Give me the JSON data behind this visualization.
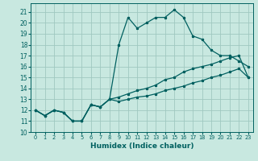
{
  "xlabel": "Humidex (Indice chaleur)",
  "bg_color": "#c8e8e0",
  "grid_color": "#a0c8c0",
  "line_color": "#006060",
  "xlim": [
    -0.5,
    23.5
  ],
  "ylim": [
    10.0,
    21.8
  ],
  "yticks": [
    10,
    11,
    12,
    13,
    14,
    15,
    16,
    17,
    18,
    19,
    20,
    21
  ],
  "xticks": [
    0,
    1,
    2,
    3,
    4,
    5,
    6,
    7,
    8,
    9,
    10,
    11,
    12,
    13,
    14,
    15,
    16,
    17,
    18,
    19,
    20,
    21,
    22,
    23
  ],
  "line1_x": [
    0,
    1,
    2,
    3,
    4,
    5,
    6,
    7,
    8,
    9,
    10,
    11,
    12,
    13,
    14,
    15,
    16,
    17,
    18,
    19,
    20,
    21,
    22,
    23
  ],
  "line1_y": [
    12.0,
    11.5,
    12.0,
    11.8,
    11.0,
    11.0,
    12.5,
    12.3,
    13.0,
    18.0,
    20.5,
    19.5,
    20.0,
    20.5,
    20.5,
    21.2,
    20.5,
    18.8,
    18.5,
    17.5,
    17.0,
    17.0,
    16.5,
    16.0
  ],
  "line2_x": [
    0,
    1,
    2,
    3,
    4,
    5,
    6,
    7,
    8,
    9,
    10,
    11,
    12,
    13,
    14,
    15,
    16,
    17,
    18,
    19,
    20,
    21,
    22,
    23
  ],
  "line2_y": [
    12.0,
    11.5,
    12.0,
    11.8,
    11.0,
    11.0,
    12.5,
    12.3,
    13.0,
    13.2,
    13.5,
    13.8,
    14.0,
    14.3,
    14.8,
    15.0,
    15.5,
    15.8,
    16.0,
    16.2,
    16.5,
    16.8,
    17.0,
    15.0
  ],
  "line3_x": [
    0,
    1,
    2,
    3,
    4,
    5,
    6,
    7,
    8,
    9,
    10,
    11,
    12,
    13,
    14,
    15,
    16,
    17,
    18,
    19,
    20,
    21,
    22,
    23
  ],
  "line3_y": [
    12.0,
    11.5,
    12.0,
    11.8,
    11.0,
    11.0,
    12.5,
    12.3,
    13.0,
    12.8,
    13.0,
    13.2,
    13.3,
    13.5,
    13.8,
    14.0,
    14.2,
    14.5,
    14.7,
    15.0,
    15.2,
    15.5,
    15.8,
    15.0
  ],
  "tick_fontsize": 5.5,
  "xlabel_fontsize": 6.5,
  "linewidth": 0.9,
  "markersize": 2.2
}
